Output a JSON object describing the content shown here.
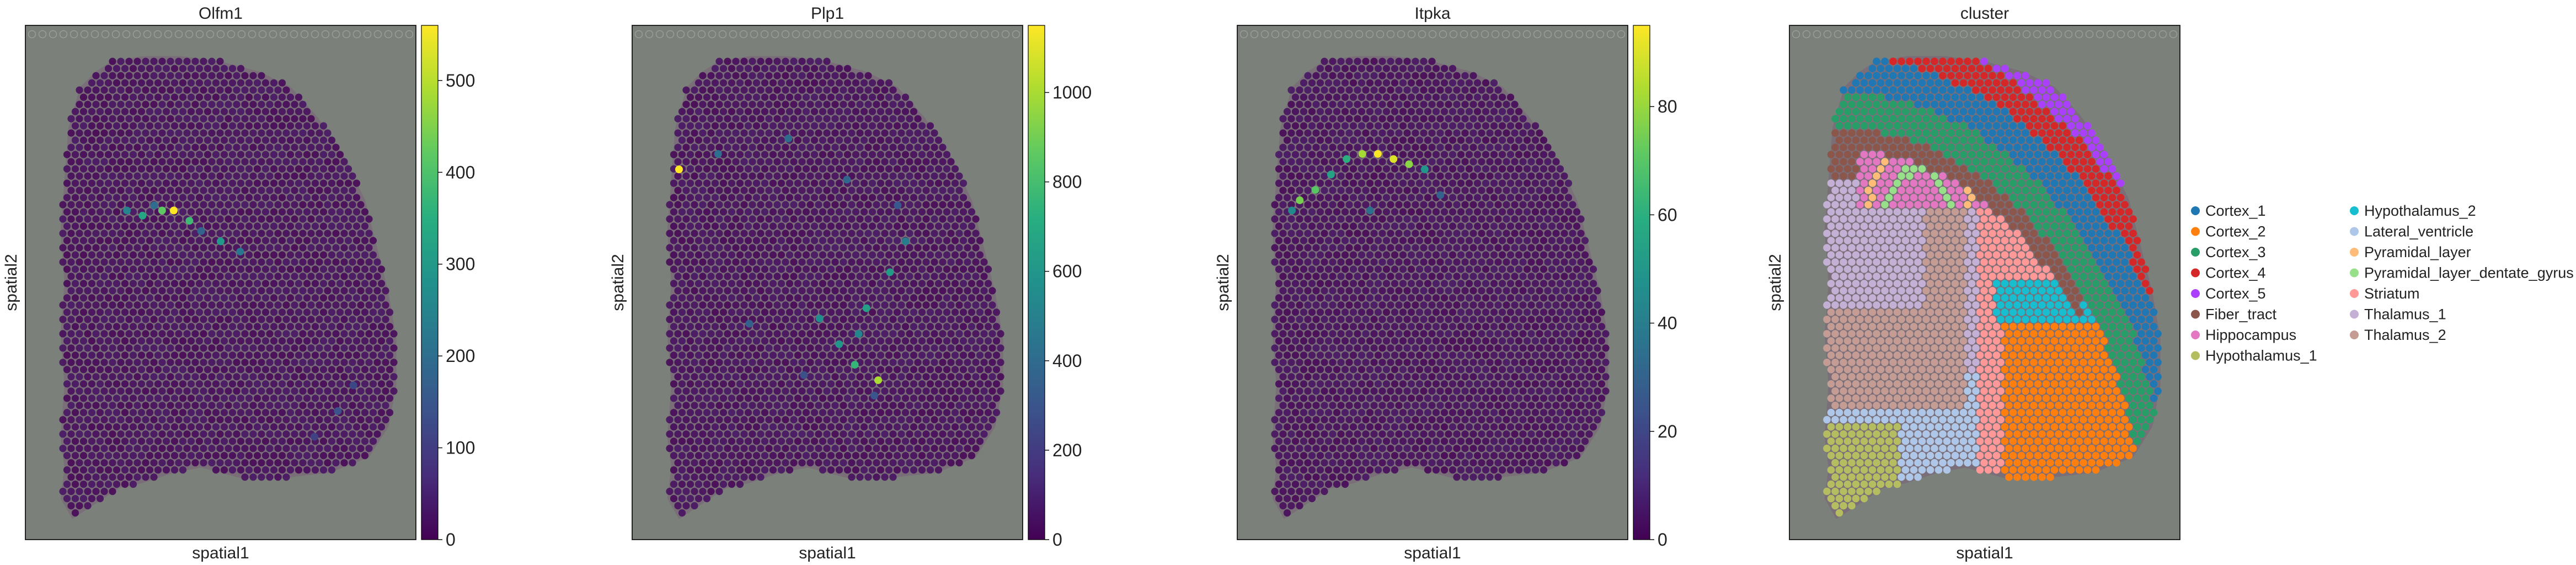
{
  "chart_data": [
    {
      "type": "scatter",
      "title": "Olfm1",
      "xlabel": "spatial1",
      "ylabel": "spatial2",
      "colormap": "viridis",
      "colorbar": {
        "min": 0,
        "max": 560,
        "ticks": [
          0,
          100,
          200,
          300,
          400,
          500
        ]
      },
      "hotspots": [
        {
          "x": 0.38,
          "y": 0.36,
          "value": 560
        },
        {
          "x": 0.35,
          "y": 0.36,
          "value": 420
        },
        {
          "x": 0.42,
          "y": 0.38,
          "value": 380
        },
        {
          "x": 0.3,
          "y": 0.37,
          "value": 330
        },
        {
          "x": 0.5,
          "y": 0.42,
          "value": 300
        },
        {
          "x": 0.26,
          "y": 0.36,
          "value": 250
        },
        {
          "x": 0.55,
          "y": 0.44,
          "value": 220
        },
        {
          "x": 0.33,
          "y": 0.35,
          "value": 200
        },
        {
          "x": 0.45,
          "y": 0.4,
          "value": 180
        },
        {
          "x": 0.8,
          "y": 0.75,
          "value": 140
        },
        {
          "x": 0.84,
          "y": 0.7,
          "value": 120
        },
        {
          "x": 0.74,
          "y": 0.8,
          "value": 110
        }
      ]
    },
    {
      "type": "scatter",
      "title": "Plp1",
      "xlabel": "spatial1",
      "ylabel": "spatial2",
      "colormap": "viridis",
      "colorbar": {
        "min": 0,
        "max": 1150,
        "ticks": [
          0,
          200,
          400,
          600,
          800,
          1000
        ]
      },
      "hotspots": [
        {
          "x": 0.12,
          "y": 0.28,
          "value": 1150
        },
        {
          "x": 0.63,
          "y": 0.69,
          "value": 1000
        },
        {
          "x": 0.57,
          "y": 0.66,
          "value": 750
        },
        {
          "x": 0.53,
          "y": 0.62,
          "value": 600
        },
        {
          "x": 0.6,
          "y": 0.55,
          "value": 650
        },
        {
          "x": 0.66,
          "y": 0.48,
          "value": 620
        },
        {
          "x": 0.48,
          "y": 0.57,
          "value": 550
        },
        {
          "x": 0.58,
          "y": 0.6,
          "value": 520
        },
        {
          "x": 0.7,
          "y": 0.42,
          "value": 480
        },
        {
          "x": 0.22,
          "y": 0.25,
          "value": 420
        },
        {
          "x": 0.4,
          "y": 0.22,
          "value": 400
        },
        {
          "x": 0.55,
          "y": 0.3,
          "value": 380
        },
        {
          "x": 0.3,
          "y": 0.58,
          "value": 350
        },
        {
          "x": 0.68,
          "y": 0.35,
          "value": 320
        },
        {
          "x": 0.62,
          "y": 0.72,
          "value": 300
        },
        {
          "x": 0.44,
          "y": 0.68,
          "value": 280
        }
      ]
    },
    {
      "type": "scatter",
      "title": "Itpka",
      "xlabel": "spatial1",
      "ylabel": "spatial2",
      "colormap": "viridis",
      "colorbar": {
        "min": 0,
        "max": 95,
        "ticks": [
          0,
          20,
          40,
          60,
          80
        ]
      },
      "hotspots": [
        {
          "x": 0.36,
          "y": 0.25,
          "value": 95
        },
        {
          "x": 0.4,
          "y": 0.26,
          "value": 90
        },
        {
          "x": 0.32,
          "y": 0.25,
          "value": 82
        },
        {
          "x": 0.44,
          "y": 0.27,
          "value": 78
        },
        {
          "x": 0.16,
          "y": 0.34,
          "value": 75
        },
        {
          "x": 0.2,
          "y": 0.32,
          "value": 70
        },
        {
          "x": 0.28,
          "y": 0.26,
          "value": 60
        },
        {
          "x": 0.24,
          "y": 0.29,
          "value": 55
        },
        {
          "x": 0.48,
          "y": 0.28,
          "value": 50
        },
        {
          "x": 0.14,
          "y": 0.36,
          "value": 45
        },
        {
          "x": 0.34,
          "y": 0.36,
          "value": 35
        },
        {
          "x": 0.52,
          "y": 0.33,
          "value": 30
        }
      ]
    },
    {
      "type": "scatter",
      "title": "cluster",
      "xlabel": "spatial1",
      "ylabel": "spatial2",
      "legend_placement": "right",
      "categories": [
        {
          "name": "Cortex_1",
          "color": "#1f77b4"
        },
        {
          "name": "Cortex_2",
          "color": "#ff7f0e"
        },
        {
          "name": "Cortex_3",
          "color": "#279e68"
        },
        {
          "name": "Cortex_4",
          "color": "#d62728"
        },
        {
          "name": "Cortex_5",
          "color": "#aa40fc"
        },
        {
          "name": "Fiber_tract",
          "color": "#8c564b"
        },
        {
          "name": "Hippocampus",
          "color": "#e377c2"
        },
        {
          "name": "Hypothalamus_1",
          "color": "#b5bd61"
        },
        {
          "name": "Hypothalamus_2",
          "color": "#17becf"
        },
        {
          "name": "Lateral_ventricle",
          "color": "#aec7e8"
        },
        {
          "name": "Pyramidal_layer",
          "color": "#ffbb78"
        },
        {
          "name": "Pyramidal_layer_dentate_gyrus",
          "color": "#98df8a"
        },
        {
          "name": "Striatum",
          "color": "#ff9896"
        },
        {
          "name": "Thalamus_1",
          "color": "#c5b0d5"
        },
        {
          "name": "Thalamus_2",
          "color": "#c49c94"
        }
      ]
    }
  ]
}
